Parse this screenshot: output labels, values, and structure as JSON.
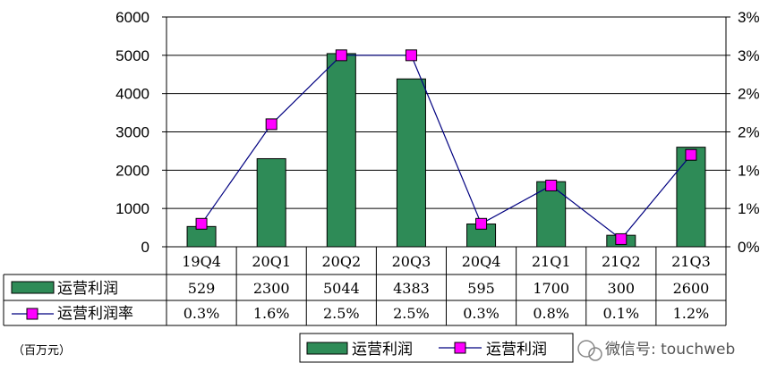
{
  "chart_data": {
    "type": "bar",
    "categories": [
      "19Q4",
      "20Q1",
      "20Q2",
      "20Q3",
      "20Q4",
      "21Q1",
      "21Q2",
      "21Q3"
    ],
    "series": [
      {
        "name": "运营利润",
        "type": "bar",
        "axis": "left",
        "values": [
          529,
          2300,
          5044,
          4383,
          595,
          1700,
          300,
          2600
        ],
        "value_labels": [
          "529",
          "2300",
          "5044",
          "4383",
          "595",
          "1700",
          "300",
          "2600"
        ]
      },
      {
        "name": "运营利润率",
        "type": "line",
        "axis": "right",
        "values": [
          0.3,
          1.6,
          2.5,
          2.5,
          0.3,
          0.8,
          0.1,
          1.2
        ],
        "value_labels": [
          "0.3%",
          "1.6%",
          "2.5%",
          "2.5%",
          "0.3%",
          "0.8%",
          "0.1%",
          "1.2%"
        ]
      }
    ],
    "ylim": [
      0,
      6000
    ],
    "y_ticks": [
      "0",
      "1000",
      "2000",
      "3000",
      "4000",
      "5000",
      "6000"
    ],
    "y2lim": [
      0,
      3
    ],
    "y2_ticks": [
      "0%",
      "1%",
      "1%",
      "2%",
      "2%",
      "3%",
      "3%"
    ],
    "grid": true,
    "legend_position": "bottom-center",
    "legend_labels": [
      "运营利润",
      "运营利润"
    ],
    "unit_note": "（百万元）",
    "colors": {
      "bar": "#2e8b57",
      "line": "#000080",
      "marker": "#ff00ff"
    }
  },
  "watermark": {
    "icon": "wechat-icon",
    "text": "微信号: touchweb"
  }
}
